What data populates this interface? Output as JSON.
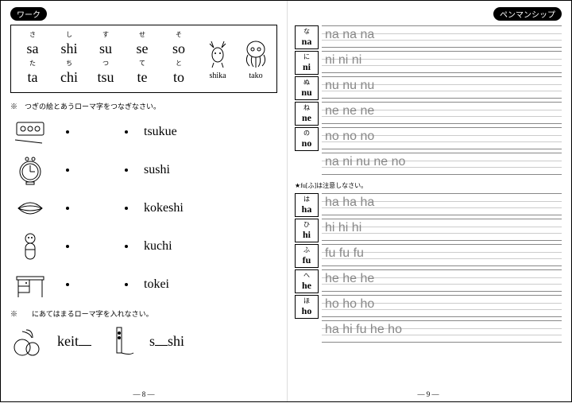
{
  "left": {
    "tab": "ワーク",
    "chart": {
      "rows": [
        {
          "kana": [
            "さ",
            "し",
            "す",
            "せ",
            "そ"
          ],
          "roma": [
            "sa",
            "shi",
            "su",
            "se",
            "so"
          ]
        },
        {
          "kana": [
            "た",
            "ち",
            "つ",
            "て",
            "と"
          ],
          "roma": [
            "ta",
            "chi",
            "tsu",
            "te",
            "to"
          ]
        }
      ],
      "animals": [
        {
          "name": "shika"
        },
        {
          "name": "tako"
        }
      ]
    },
    "instruction1": "※　つぎの絵とあうローマ字をつなぎなさい。",
    "matches": [
      "tsukue",
      "sushi",
      "kokeshi",
      "kuchi",
      "tokei"
    ],
    "instruction2": "※　　にあてはまるローマ字を入れなさい。",
    "fills": [
      {
        "pre": "keit",
        "post": ""
      },
      {
        "pre": "s",
        "post": "shi"
      }
    ],
    "pageNum": "— 8 —"
  },
  "right": {
    "tab": "ペンマンシップ",
    "group1": [
      {
        "kana": "な",
        "roma": "na",
        "trace": "na na na"
      },
      {
        "kana": "に",
        "roma": "ni",
        "trace": "ni ni ni"
      },
      {
        "kana": "ぬ",
        "roma": "nu",
        "trace": "nu nu nu"
      },
      {
        "kana": "ね",
        "roma": "ne",
        "trace": "ne ne ne"
      },
      {
        "kana": "の",
        "roma": "no",
        "trace": "no no no"
      }
    ],
    "review1": "na ni nu ne no",
    "note": "★fu[ふ]は注意しなさい。",
    "group2": [
      {
        "kana": "は",
        "roma": "ha",
        "trace": "ha ha ha"
      },
      {
        "kana": "ひ",
        "roma": "hi",
        "trace": "hi hi hi"
      },
      {
        "kana": "ふ",
        "roma": "fu",
        "trace": "fu fu fu"
      },
      {
        "kana": "へ",
        "roma": "he",
        "trace": "he he he"
      },
      {
        "kana": "ほ",
        "roma": "ho",
        "trace": "ho ho ho"
      }
    ],
    "review2": "ha hi fu he ho",
    "pageNum": "— 9 —"
  }
}
